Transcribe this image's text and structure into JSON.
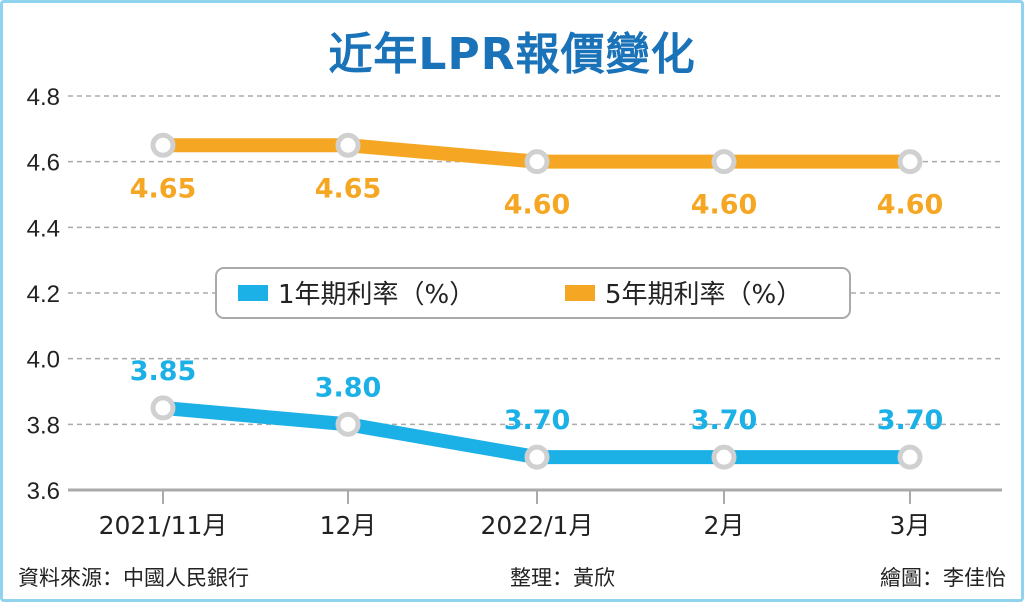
{
  "chart_data": {
    "type": "line",
    "title": "近年LPR報價變化",
    "categories": [
      "2021/11月",
      "12月",
      "2022/1月",
      "2月",
      "3月"
    ],
    "ylim": [
      3.6,
      4.8
    ],
    "yticks": [
      "3.6",
      "3.8",
      "4.0",
      "4.2",
      "4.4",
      "4.6",
      "4.8"
    ],
    "grid": true,
    "legend_placement": "center",
    "series": [
      {
        "name": "1年期利率（%）",
        "color": "#1bb0e6",
        "values": [
          3.85,
          3.8,
          3.7,
          3.7,
          3.7
        ],
        "labels": [
          "3.85",
          "3.80",
          "3.70",
          "3.70",
          "3.70"
        ]
      },
      {
        "name": "5年期利率（%）",
        "color": "#f5a623",
        "values": [
          4.65,
          4.65,
          4.6,
          4.6,
          4.6
        ],
        "labels": [
          "4.65",
          "4.65",
          "4.60",
          "4.60",
          "4.60"
        ]
      }
    ]
  },
  "footer": {
    "source": "資料來源：中國人民銀行",
    "editor": "整理：黃欣",
    "illustrator": "繪圖：李佳怡"
  },
  "colors": {
    "title": "#1a72b8",
    "frame": "#8fd3ee"
  }
}
